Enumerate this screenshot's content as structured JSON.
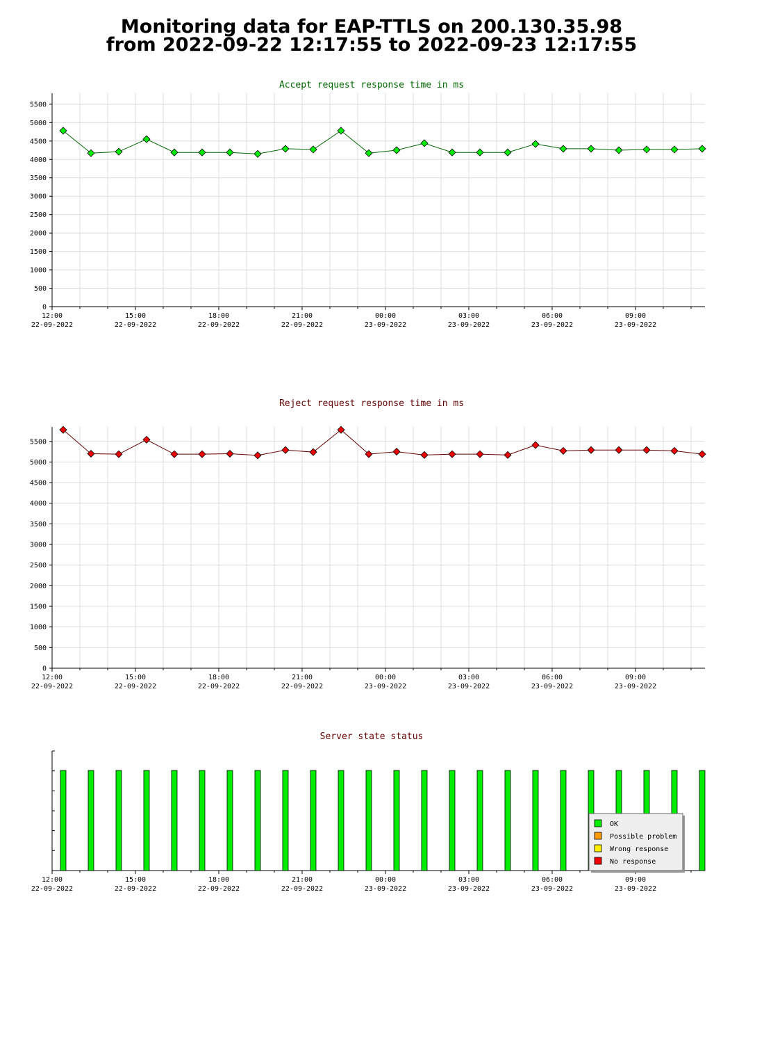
{
  "page": {
    "title_line1": "Monitoring data for EAP-TTLS on 200.130.35.98",
    "title_line2": "from 2022-09-22 12:17:55 to 2022-09-23 12:17:55"
  },
  "x_ticks": [
    {
      "time": "12:00",
      "date": "22-09-2022",
      "hour": 12
    },
    {
      "time": "15:00",
      "date": "22-09-2022",
      "hour": 15
    },
    {
      "time": "18:00",
      "date": "22-09-2022",
      "hour": 18
    },
    {
      "time": "21:00",
      "date": "22-09-2022",
      "hour": 21
    },
    {
      "time": "00:00",
      "date": "23-09-2022",
      "hour": 24
    },
    {
      "time": "03:00",
      "date": "23-09-2022",
      "hour": 27
    },
    {
      "time": "06:00",
      "date": "23-09-2022",
      "hour": 30
    },
    {
      "time": "09:00",
      "date": "23-09-2022",
      "hour": 33
    }
  ],
  "chart_data": [
    {
      "type": "line",
      "title": "Accept request response time in ms",
      "title_color": "#006600",
      "line_color": "#006600",
      "marker_color": "#00ee00",
      "xlim_hours": [
        12,
        35.5
      ],
      "ylim": [
        0,
        5800
      ],
      "y_ticks": [
        0,
        500,
        1000,
        1500,
        2000,
        2500,
        3000,
        3500,
        4000,
        4500,
        5000,
        5500
      ],
      "grid": true,
      "x_hours": [
        12.4,
        13.4,
        14.4,
        15.4,
        16.4,
        17.4,
        18.4,
        19.4,
        20.4,
        21.4,
        22.4,
        23.4,
        24.4,
        25.4,
        26.4,
        27.4,
        28.4,
        29.4,
        30.4,
        31.4,
        32.4,
        33.4,
        34.4,
        35.4
      ],
      "values": [
        4780,
        4170,
        4210,
        4550,
        4190,
        4190,
        4190,
        4150,
        4290,
        4270,
        4780,
        4170,
        4250,
        4440,
        4190,
        4190,
        4190,
        4420,
        4290,
        4290,
        4250,
        4270,
        4270,
        4290
      ]
    },
    {
      "type": "line",
      "title": "Reject request response time in ms",
      "title_color": "#660000",
      "line_color": "#660000",
      "marker_color": "#ee0000",
      "xlim_hours": [
        12,
        35.5
      ],
      "ylim": [
        0,
        5850
      ],
      "y_ticks": [
        0,
        500,
        1000,
        1500,
        2000,
        2500,
        3000,
        3500,
        4000,
        4500,
        5000,
        5500
      ],
      "grid": true,
      "x_hours": [
        12.4,
        13.4,
        14.4,
        15.4,
        16.4,
        17.4,
        18.4,
        19.4,
        20.4,
        21.4,
        22.4,
        23.4,
        24.4,
        25.4,
        26.4,
        27.4,
        28.4,
        29.4,
        30.4,
        31.4,
        32.4,
        33.4,
        34.4,
        35.4
      ],
      "values": [
        5780,
        5200,
        5190,
        5540,
        5190,
        5190,
        5200,
        5160,
        5290,
        5240,
        5780,
        5190,
        5250,
        5170,
        5190,
        5190,
        5170,
        5410,
        5270,
        5290,
        5290,
        5290,
        5270,
        5190
      ]
    },
    {
      "type": "bar",
      "title": "Server state status",
      "title_color": "#660000",
      "xlim_hours": [
        12,
        35.5
      ],
      "x_hours": [
        12.4,
        13.4,
        14.4,
        15.4,
        16.4,
        17.4,
        18.4,
        19.4,
        20.4,
        21.4,
        22.4,
        23.4,
        24.4,
        25.4,
        26.4,
        27.4,
        28.4,
        29.4,
        30.4,
        31.4,
        32.4,
        33.4,
        34.4,
        35.4
      ],
      "states": [
        "OK",
        "OK",
        "OK",
        "OK",
        "OK",
        "OK",
        "OK",
        "OK",
        "OK",
        "OK",
        "OK",
        "OK",
        "OK",
        "OK",
        "OK",
        "OK",
        "OK",
        "OK",
        "OK",
        "OK",
        "OK",
        "OK",
        "OK",
        "OK"
      ],
      "legend_position": "bottom-right",
      "legend": [
        {
          "label": "OK",
          "color": "#00ee00"
        },
        {
          "label": "Possible problem",
          "color": "#ff9900"
        },
        {
          "label": "Wrong response",
          "color": "#ffee00"
        },
        {
          "label": "No response",
          "color": "#ee0000"
        }
      ]
    }
  ]
}
